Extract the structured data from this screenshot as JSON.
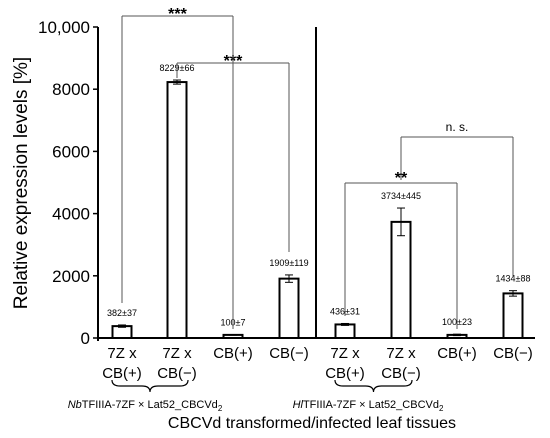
{
  "chart_data": {
    "type": "bar",
    "ylabel": "Relative expression levels [%]",
    "xlabel": "CBCVd transformed/infected leaf tissues",
    "ylim": [
      0,
      10000
    ],
    "yticks": [
      "0",
      "2000",
      "4000",
      "6000",
      "8000",
      "10,000"
    ],
    "ytick_values": [
      0,
      2000,
      4000,
      6000,
      8000,
      10000
    ],
    "grid": false,
    "legend": "none",
    "colors": {
      "bar_fill": "#ffffff",
      "bar_edge": "#000000",
      "axis": "#000000",
      "bracket": "#555555"
    },
    "categories": [
      [
        "7Z x",
        "CB(+)"
      ],
      [
        "7Z x",
        "CB(−)"
      ],
      [
        "CB(+)"
      ],
      [
        "CB(−)"
      ],
      [
        "7Z x",
        "CB(+)"
      ],
      [
        "7Z x",
        "CB(−)"
      ],
      [
        "CB(+)"
      ],
      [
        "CB(−)"
      ]
    ],
    "values": [
      382,
      8229,
      100,
      1909,
      436,
      3734,
      100,
      1434
    ],
    "errors": [
      37,
      66,
      7,
      119,
      31,
      445,
      23,
      88
    ],
    "data_labels": [
      "382±37",
      "8229±66",
      "100±7",
      "1909±119",
      "436±31",
      "3734±445",
      "100±23",
      "1434±88"
    ],
    "group_labels": [
      {
        "italic": "Nb",
        "rest": "TFIIIA-7ZF × Lat52_CBCVd",
        "sub": "2"
      },
      {
        "italic": "Hl",
        "rest": "TFIIIA-7ZF × Lat52_CBCVd",
        "sub": "2"
      }
    ],
    "comparisons": [
      {
        "from": 1,
        "to": 3,
        "label": "***"
      },
      {
        "from": 0,
        "to": 2,
        "label": "***"
      },
      {
        "from": 5,
        "to": 7,
        "label": "n. s."
      },
      {
        "from": 4,
        "to": 6,
        "label": "**"
      }
    ]
  }
}
